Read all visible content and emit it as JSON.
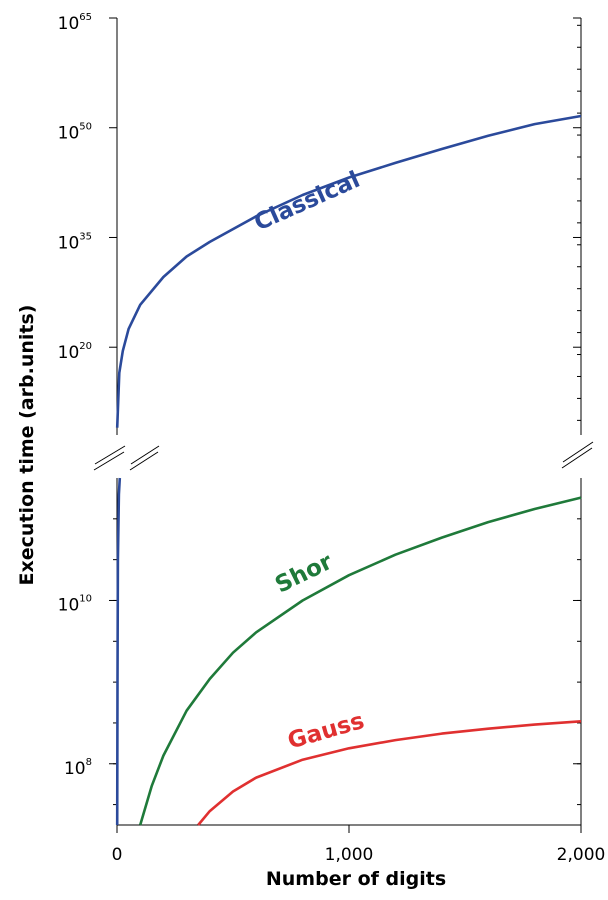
{
  "chart_data": {
    "type": "line",
    "title": "",
    "xlabel": "Number of digits",
    "ylabel": "Execution time (arb.units)",
    "xlim": [
      0,
      2000
    ],
    "x_ticks": [
      {
        "value": 0,
        "label": "0"
      },
      {
        "value": 1000,
        "label": "1,000"
      },
      {
        "value": 2000,
        "label": "2,000"
      }
    ],
    "y_scale": "log",
    "y_axis_break": true,
    "y_upper_range_exponent": [
      8,
      65
    ],
    "y_lower_range_exponent": [
      7.25,
      11.5
    ],
    "y_ticks_upper": [
      {
        "base": "10",
        "exponent": "65",
        "value_exponent": 65
      },
      {
        "base": "10",
        "exponent": "50",
        "value_exponent": 50
      },
      {
        "base": "10",
        "exponent": "35",
        "value_exponent": 35
      },
      {
        "base": "10",
        "exponent": "20",
        "value_exponent": 20
      }
    ],
    "y_ticks_lower": [
      {
        "base": "10",
        "exponent": "10",
        "value_exponent": 10
      },
      {
        "base": "10",
        "exponent": "8",
        "value_exponent": 8
      }
    ],
    "grid": false,
    "legend": "none",
    "series": [
      {
        "name": "Classical",
        "color": "#2b4a9b",
        "segment": "upper",
        "x": [
          1,
          10,
          25,
          50,
          100,
          200,
          300,
          400,
          600,
          800,
          1000,
          1200,
          1400,
          1600,
          1800,
          2000
        ],
        "y_exponent": [
          9,
          16.5,
          19.5,
          22.5,
          25.8,
          29.6,
          32.4,
          34.4,
          37.9,
          40.8,
          43.2,
          45.2,
          47.1,
          48.9,
          50.5,
          51.6
        ]
      },
      {
        "name": "Shor",
        "color": "#1f7a3a",
        "segment": "lower",
        "x": [
          100,
          150,
          200,
          300,
          400,
          500,
          600,
          800,
          1000,
          1200,
          1400,
          1600,
          1800,
          2000
        ],
        "y_exponent": [
          7.25,
          7.73,
          8.1,
          8.65,
          9.04,
          9.36,
          9.61,
          10.0,
          10.31,
          10.56,
          10.77,
          10.96,
          11.12,
          11.26
        ]
      },
      {
        "name": "Gauss",
        "color": "#e03030",
        "segment": "lower",
        "x": [
          350,
          400,
          500,
          600,
          800,
          1000,
          1200,
          1400,
          1600,
          1800,
          2000
        ],
        "y_exponent": [
          7.25,
          7.42,
          7.66,
          7.83,
          8.05,
          8.19,
          8.29,
          8.37,
          8.43,
          8.48,
          8.52
        ]
      },
      {
        "name": "",
        "color": "#2b4a9b",
        "segment": "lower",
        "x": [
          1,
          2,
          4,
          8,
          12
        ],
        "y_exponent": [
          7.25,
          9,
          10.5,
          11.3,
          11.5
        ]
      }
    ]
  }
}
